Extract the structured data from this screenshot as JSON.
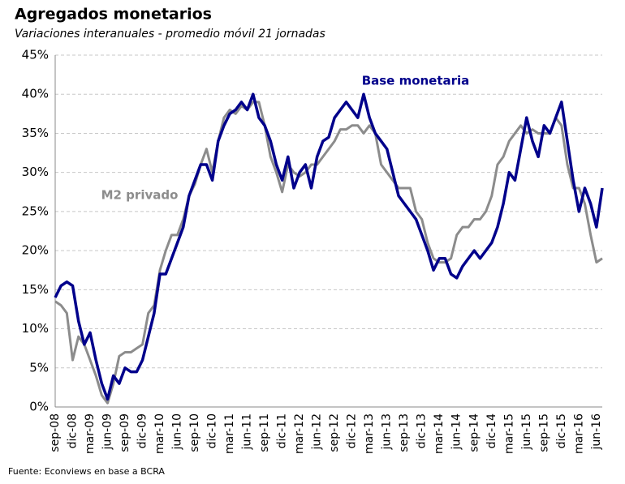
{
  "chart_data": {
    "type": "line",
    "title": "Agregados monetarios",
    "subtitle": "Variaciones interanuales - promedio móvil 21 jornadas",
    "source": "Fuente: Econviews en base a BCRA",
    "categories": [
      "sep-08",
      null,
      null,
      "dic-08",
      null,
      null,
      "mar-09",
      null,
      null,
      "jun-09",
      null,
      null,
      "sep-09",
      null,
      null,
      "dic-09",
      null,
      null,
      "mar-10",
      null,
      null,
      "jun-10",
      null,
      null,
      "sep-10",
      null,
      null,
      "dic-10",
      null,
      null,
      "mar-11",
      null,
      null,
      "jun-11",
      null,
      null,
      "sep-11",
      null,
      null,
      "dic-11",
      null,
      null,
      "mar-12",
      null,
      null,
      "jun-12",
      null,
      null,
      "sep-12",
      null,
      null,
      "dic-12",
      null,
      null,
      "mar-13",
      null,
      null,
      "jun-13",
      null,
      null,
      "sep-13",
      null,
      null,
      "dic-13",
      null,
      null,
      "mar-14",
      null,
      null,
      "jun-14",
      null,
      null,
      "sep-14",
      null,
      null,
      "dic-14",
      null,
      null,
      "mar-15",
      null,
      null,
      "jun-15",
      null,
      null,
      "sep-15",
      null,
      null,
      "dic-15",
      null,
      null,
      "mar-16",
      null,
      null,
      "jun-16",
      null
    ],
    "series": [
      {
        "name": "Base monetaria",
        "color": "#00008b",
        "values": [
          14,
          15.5,
          16,
          15.5,
          11,
          8,
          9.5,
          6,
          3,
          1,
          4,
          3,
          5,
          4.5,
          4.5,
          6,
          9,
          12,
          17,
          17,
          19,
          21,
          23,
          27,
          29,
          31,
          31,
          29,
          34,
          36,
          37.5,
          38,
          39,
          38,
          40,
          37,
          36,
          34,
          31,
          29,
          32,
          28,
          30,
          31,
          28,
          32,
          34,
          34.5,
          37,
          38,
          39,
          38,
          37,
          40,
          37,
          35,
          34,
          33,
          30,
          27,
          26,
          25,
          24,
          22,
          20,
          17.5,
          19,
          19,
          17,
          16.5,
          18,
          19,
          20,
          19,
          20,
          21,
          23,
          26,
          30,
          29,
          33,
          37,
          34,
          32,
          36,
          35,
          37,
          39,
          34,
          29,
          25,
          28,
          26,
          23,
          28
        ]
      },
      {
        "name": "M2 privado",
        "color": "#8c8c8c",
        "values": [
          13.5,
          13,
          12,
          6,
          9,
          8,
          6,
          4,
          1.5,
          0.5,
          3,
          6.5,
          7,
          7,
          7.5,
          8,
          12,
          13,
          17.5,
          20,
          22,
          22,
          24,
          27,
          28.5,
          31,
          33,
          30,
          34,
          37,
          38,
          37.5,
          38.5,
          38,
          39,
          39,
          36,
          32,
          30,
          27.5,
          31,
          30,
          29.5,
          30,
          31,
          31,
          32,
          33,
          34,
          35.5,
          35.5,
          36,
          36,
          35,
          36,
          35,
          31,
          30,
          29,
          28,
          28,
          28,
          25,
          24,
          21,
          19,
          18.5,
          18.5,
          19,
          22,
          23,
          23,
          24,
          24,
          25,
          27,
          31,
          32,
          34,
          35,
          36,
          35,
          35.5,
          35,
          35,
          35,
          37,
          36,
          31,
          28,
          28,
          26,
          22,
          18.5,
          19
        ]
      }
    ],
    "ylim": [
      0,
      45
    ],
    "yticks": [
      {
        "value": 0,
        "label": "0%"
      },
      {
        "value": 5,
        "label": "5%"
      },
      {
        "value": 10,
        "label": "10%"
      },
      {
        "value": 15,
        "label": "15%"
      },
      {
        "value": 20,
        "label": "20%"
      },
      {
        "value": 25,
        "label": "25%"
      },
      {
        "value": 30,
        "label": "30%"
      },
      {
        "value": 35,
        "label": "35%"
      },
      {
        "value": 40,
        "label": "40%"
      },
      {
        "value": 45,
        "label": "45%"
      }
    ],
    "grid": true
  }
}
